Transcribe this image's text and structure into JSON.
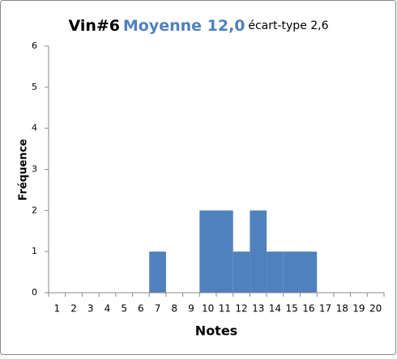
{
  "chart_data": {
    "type": "bar",
    "title": "Vin#6",
    "subtitle": "Moyenne 12,0",
    "annotation": "écart-type 2,6",
    "x_label": "Notes",
    "y_label": "Fréquence",
    "categories": [
      "1",
      "2",
      "3",
      "4",
      "5",
      "6",
      "7",
      "8",
      "9",
      "10",
      "11",
      "12",
      "13",
      "14",
      "15",
      "16",
      "17",
      "18",
      "19",
      "20"
    ],
    "values": [
      0,
      0,
      0,
      0,
      0,
      0,
      1,
      0,
      0,
      2,
      2,
      1,
      2,
      1,
      1,
      1,
      0,
      0,
      0,
      0
    ],
    "color": "#4f81bd",
    "ylim": [
      0,
      6
    ],
    "yticks": [
      0,
      1,
      2,
      3,
      4,
      5,
      6
    ],
    "grid": false
  }
}
